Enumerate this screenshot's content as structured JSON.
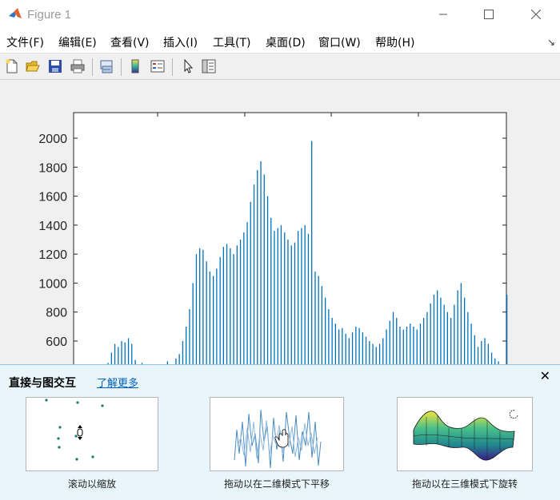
{
  "window": {
    "title": "Figure 1"
  },
  "menu": {
    "items": [
      "文件(F)",
      "编辑(E)",
      "查看(V)",
      "插入(I)",
      "工具(T)",
      "桌面(D)",
      "窗口(W)",
      "帮助(H)"
    ],
    "overflow_icon": "dock-arrow-icon"
  },
  "toolbar": {
    "icons": [
      "new-figure-icon",
      "open-file-icon",
      "save-icon",
      "print-icon",
      "link-plot-icon",
      "insert-colorbar-icon",
      "insert-legend-icon",
      "pointer-icon",
      "property-inspector-icon"
    ]
  },
  "colors": {
    "bar": "#0072bd",
    "panel_bg": "#e8f6fc",
    "link": "#0060c0"
  },
  "chart_data": {
    "type": "bar",
    "ylim_visible": [
      450,
      2150
    ],
    "yticks": [
      "2000",
      "1800",
      "1600",
      "1400",
      "1200",
      "1000",
      "800",
      "600"
    ],
    "grid": false,
    "series_approx_x": [
      0,
      20,
      22,
      24,
      26,
      28,
      30,
      32,
      34,
      36,
      40,
      45,
      50,
      55,
      60,
      62,
      64,
      66,
      68,
      70,
      72,
      74,
      76,
      78,
      80,
      82,
      84,
      86,
      88,
      90,
      92,
      94,
      96,
      98,
      100,
      102,
      104,
      106,
      108,
      110,
      112,
      114,
      116,
      118,
      120,
      122,
      124,
      126,
      128,
      130,
      132,
      134,
      136,
      138,
      140,
      142,
      144,
      146,
      148,
      150,
      152,
      154,
      156,
      158,
      160,
      162,
      164,
      166,
      168,
      170,
      172,
      174,
      176,
      178,
      180,
      182,
      184,
      186,
      188,
      190,
      192,
      194,
      196,
      198,
      200,
      202,
      204,
      206,
      208,
      210,
      212,
      214,
      216,
      218,
      220,
      222,
      224,
      226,
      228,
      230,
      232,
      234,
      236,
      238,
      240,
      242,
      244,
      246,
      248,
      250,
      255
    ],
    "values": [
      0,
      450,
      520,
      580,
      560,
      600,
      590,
      620,
      580,
      470,
      450,
      430,
      440,
      460,
      480,
      510,
      600,
      700,
      820,
      1000,
      1200,
      1240,
      1230,
      1150,
      1080,
      1050,
      1100,
      1180,
      1250,
      1270,
      1240,
      1200,
      1260,
      1300,
      1350,
      1420,
      1560,
      1680,
      1780,
      1840,
      1750,
      1600,
      1450,
      1360,
      1380,
      1400,
      1350,
      1300,
      1260,
      1280,
      1360,
      1380,
      1400,
      1340,
      1980,
      1080,
      1050,
      980,
      900,
      820,
      760,
      720,
      680,
      690,
      650,
      620,
      660,
      700,
      690,
      660,
      630,
      600,
      580,
      560,
      580,
      620,
      680,
      740,
      800,
      760,
      700,
      680,
      700,
      720,
      700,
      680,
      720,
      760,
      800,
      860,
      920,
      950,
      900,
      850,
      800,
      760,
      850,
      950,
      1000,
      900,
      800,
      720,
      640,
      560,
      600,
      620,
      580,
      520,
      480,
      460,
      920
    ],
    "xlabel": "",
    "ylabel": ""
  },
  "tip_panel": {
    "title": "直接与图交互",
    "link": "了解更多",
    "cards": [
      {
        "caption": "滚动以缩放"
      },
      {
        "caption": "拖动以在二维模式下平移"
      },
      {
        "caption": "拖动以在三维模式下旋转"
      }
    ]
  }
}
